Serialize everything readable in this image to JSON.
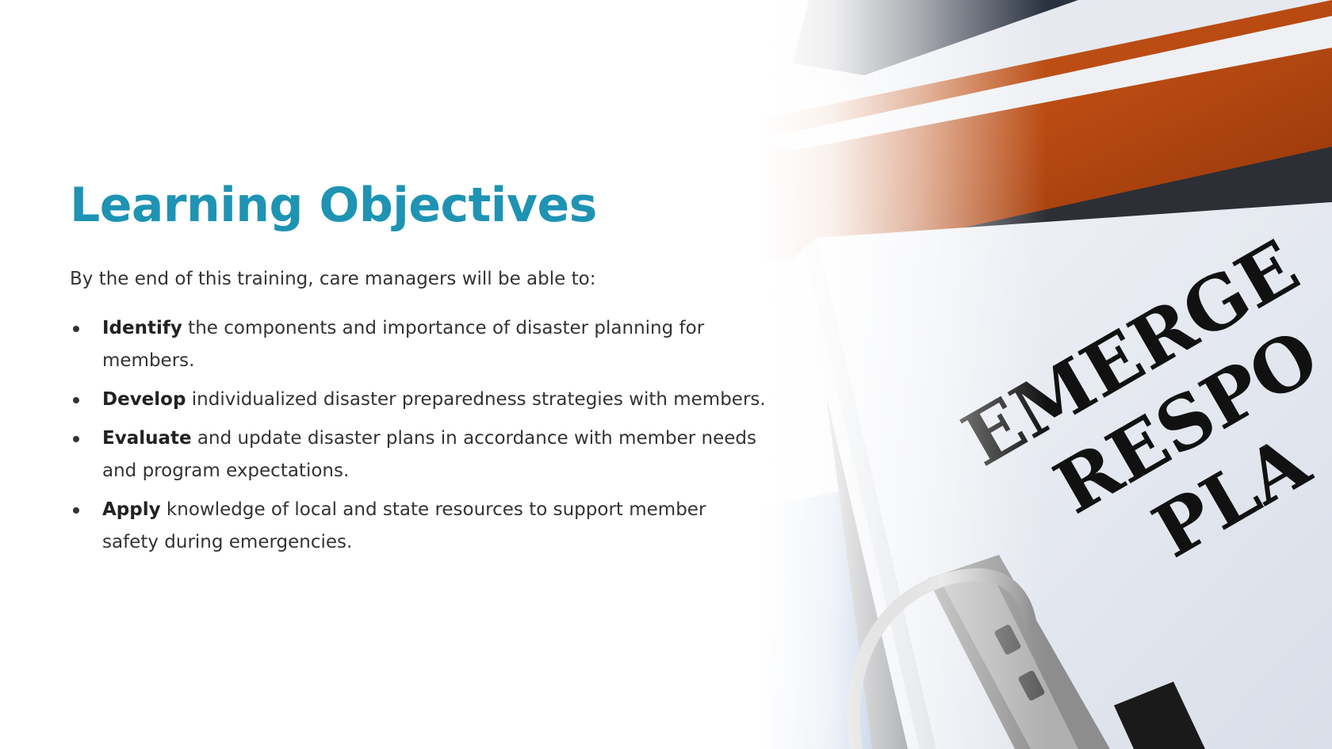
{
  "slide": {
    "title": "Learning Objectives",
    "intro": "By the end of this training, care managers will be able to:",
    "objectives": [
      {
        "verb": "Identify",
        "text": " the components and importance of disaster planning for members."
      },
      {
        "verb": "Develop",
        "text": " individualized disaster preparedness strategies with members."
      },
      {
        "verb": "Evaluate",
        "text": " and update disaster plans in accordance with member needs and program expectations."
      },
      {
        "verb": "Apply",
        "text": " knowledge of local and state resources to support member safety during emergencies."
      }
    ],
    "accent_color": "#1e93b4",
    "photo": {
      "subject": "binder-with-emergency-response-plan-document",
      "visible_lines": [
        "EMERGE",
        "RESPO",
        "PLA"
      ]
    }
  }
}
